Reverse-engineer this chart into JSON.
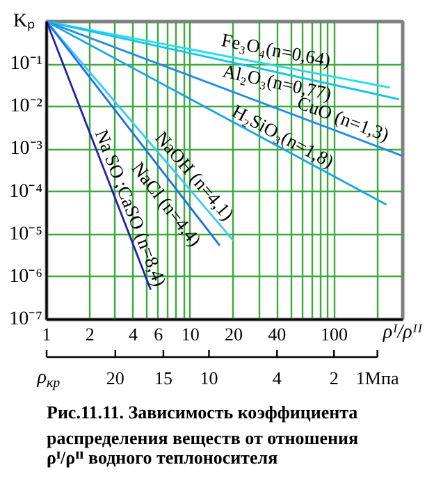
{
  "chart_data": {
    "type": "line",
    "title": "Рис.11.11. Зависимость коэффициента распределения веществ от отношения ρᴵ/ρᴵᴵ водного теплоносителя",
    "xlabel": "ρᴵ/ρᴵᴵ",
    "ylabel": "Kₚ",
    "log": "xy",
    "grid": true,
    "line_style": "solid",
    "xlim": [
      1,
      300
    ],
    "ylim": [
      1e-07,
      1
    ],
    "xticks": [
      1,
      2,
      {
        "value": 3,
        "label": null
      },
      4,
      {
        "value": 5,
        "label": null
      },
      6,
      {
        "value": 7,
        "label": null
      },
      {
        "value": 8,
        "label": null
      },
      {
        "value": 9,
        "label": null
      },
      10,
      20,
      {
        "value": 30,
        "label": null
      },
      40,
      {
        "value": 50,
        "label": null
      },
      {
        "value": 60,
        "label": null
      },
      {
        "value": 70,
        "label": null
      },
      {
        "value": 80,
        "label": null
      },
      {
        "value": 90,
        "label": null
      },
      100,
      {
        "value": 200,
        "label": null
      }
    ],
    "yticks": [
      {
        "value": 1e-07,
        "label": "10⁻⁷"
      },
      {
        "value": 1e-06,
        "label": "10⁻⁶"
      },
      {
        "value": 1e-05,
        "label": "10⁻⁵"
      },
      {
        "value": 0.0001,
        "label": "10⁻⁴"
      },
      {
        "value": 0.001,
        "label": "10⁻³"
      },
      {
        "value": 0.01,
        "label": "10⁻²"
      },
      {
        "value": 0.1,
        "label": "10⁻¹"
      },
      {
        "value": 1,
        "label": null
      }
    ],
    "annotations": [
      "ρ$_{кр}$",
      "20",
      "15",
      "10",
      "4",
      "2",
      "1Мпа"
    ],
    "series": [
      {
        "name": "Fe₃O₄(n=0,64)",
        "color": "#22ddee",
        "x": [
          1,
          245
        ],
        "values": [
          1,
          0.028
        ]
      },
      {
        "name": "Al₂O₃(n=0,77)",
        "color": "#10c4f0",
        "x": [
          1,
          283
        ],
        "values": [
          1,
          0.015
        ]
      },
      {
        "name": "CuO (n=1,3)",
        "color": "#1e8ce8",
        "x": [
          1,
          298
        ],
        "values": [
          1,
          0.0007
        ]
      },
      {
        "name": "H₂SiO₃(n=1,8)",
        "color": "#1ea2e6",
        "x": [
          1,
          231
        ],
        "values": [
          1,
          5e-05
        ]
      },
      {
        "name": "NaOH (n=4,1)",
        "color": "#3cc8f8",
        "x": [
          1,
          20
        ],
        "values": [
          1,
          7e-06
        ]
      },
      {
        "name": "NaCl (n=4,4)",
        "color": "#1a6ef0",
        "x": [
          1,
          16
        ],
        "values": [
          1,
          5.5e-06
        ]
      },
      {
        "name": "Na SO ;CaSO (n=8,4)",
        "color": "#2020b0",
        "x": [
          1,
          5.3
        ],
        "values": [
          1,
          5e-07
        ]
      }
    ]
  }
}
